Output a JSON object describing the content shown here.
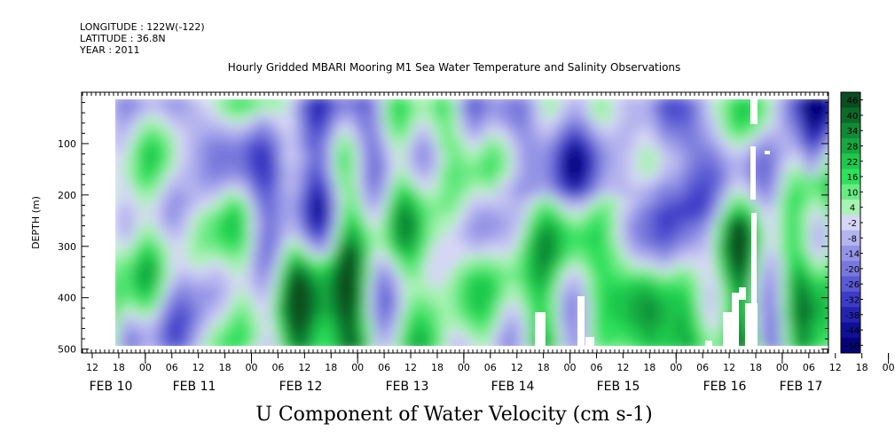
{
  "header": {
    "longitude": "LONGITUDE : 122W(-122)",
    "latitude": "LATITUDE : 36.8N",
    "year": "YEAR : 2011"
  },
  "chart_data": {
    "type": "heatmap",
    "title": "Hourly Gridded MBARI Mooring M1 Sea Water Temperature and Salinity Observations",
    "xlabel": "",
    "ylabel": "DEPTH (m)",
    "bottom_label": "U Component of Water Velocity (cm s-1)",
    "y_axis": {
      "range": [
        500,
        0
      ],
      "ticks": [
        100,
        200,
        300,
        400,
        500
      ],
      "inverted": true,
      "data_depth_range": [
        20,
        490
      ]
    },
    "x_axis": {
      "hour_ticks": [
        "12",
        "18",
        "00",
        "06",
        "12",
        "18",
        "00",
        "06",
        "12",
        "18",
        "00",
        "06",
        "12",
        "18",
        "00",
        "06",
        "12",
        "18",
        "00",
        "06",
        "12",
        "18",
        "00",
        "06",
        "12",
        "18",
        "00",
        "06",
        "12",
        "18",
        "00",
        "06"
      ],
      "day_labels": [
        "FEB 10",
        "FEB 11",
        "FEB 12",
        "FEB 13",
        "FEB 14",
        "FEB 15",
        "FEB 16",
        "FEB 17"
      ]
    },
    "colorbar": {
      "ticks": [
        46,
        40,
        34,
        28,
        22,
        16,
        10,
        4,
        -2,
        -8,
        -14,
        -20,
        -26,
        -32,
        -38,
        -44,
        -50
      ],
      "colors": [
        "#0a4d1e",
        "#0d6a2a",
        "#118a35",
        "#17a840",
        "#1fc84c",
        "#2ee05c",
        "#6aea84",
        "#a8f2b4",
        "#d6d6f5",
        "#b4b4ee",
        "#9494e6",
        "#7878dc",
        "#5a5ad4",
        "#3c3cc8",
        "#2424b0",
        "#101096",
        "#04047a"
      ]
    },
    "data_description_regions": [
      {
        "x_range_hours": [
          0,
          24
        ],
        "depth_range": [
          20,
          200
        ],
        "sign": "negative"
      },
      {
        "x_range_hours": [
          0,
          48
        ],
        "depth_range": [
          250,
          490
        ],
        "sign": "positive"
      },
      {
        "x_range_hours": [
          96,
          132
        ],
        "depth_range": [
          20,
          200
        ],
        "sign": "negative"
      },
      {
        "x_range_hours": [
          132,
          144
        ],
        "depth_range": [
          100,
          490
        ],
        "sign": "positive"
      },
      {
        "x_range_hours": [
          168,
          174
        ],
        "depth_range": [
          20,
          120
        ],
        "sign": "strongly negative"
      }
    ]
  }
}
